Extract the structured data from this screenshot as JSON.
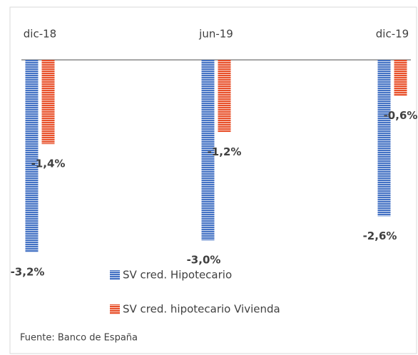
{
  "chart_data": {
    "type": "bar",
    "categories": [
      "dic-18",
      "jun-19",
      "dic-19"
    ],
    "series": [
      {
        "name": "SV cred. Hipotecario",
        "color": "#4472c4",
        "values": [
          -3.2,
          -3.0,
          -2.6
        ],
        "value_labels": [
          "-3,2%",
          "-3,0%",
          "-2,6%"
        ]
      },
      {
        "name": "SV cred. hipotecario Vivienda",
        "color": "#e8502a",
        "values": [
          -1.4,
          -1.2,
          -0.6
        ],
        "value_labels": [
          "-1,4%",
          "-1,2%",
          "-0,6%"
        ]
      }
    ],
    "ylim": [
      -3.2,
      0
    ],
    "pattern": "horizontal-stripes",
    "legend": "bottom",
    "source": "Fuente: Banco de España"
  }
}
